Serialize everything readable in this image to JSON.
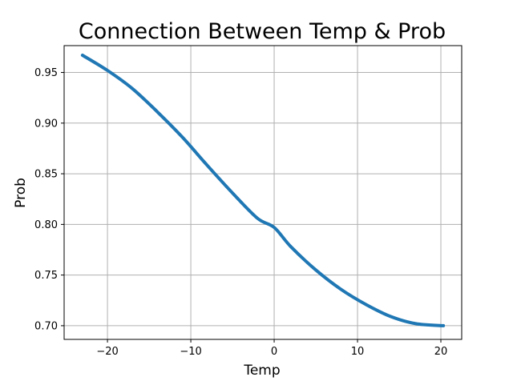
{
  "chart_data": {
    "type": "line",
    "title": "Connection Between Temp & Prob",
    "xlabel": "Temp",
    "ylabel": "Prob",
    "xlim": [
      -25.2,
      22.5
    ],
    "ylim": [
      0.6865,
      0.9765
    ],
    "grid": true,
    "x_ticks": [
      -20,
      -10,
      0,
      10,
      20
    ],
    "x_tick_labels": [
      "−20",
      "−10",
      "0",
      "10",
      "20"
    ],
    "y_ticks": [
      0.7,
      0.75,
      0.8,
      0.85,
      0.9,
      0.95
    ],
    "y_tick_labels": [
      "0.70",
      "0.75",
      "0.80",
      "0.85",
      "0.90",
      "0.95"
    ],
    "series": [
      {
        "color": "#1f77b4",
        "x": [
          -23,
          -20,
          -17,
          -14,
          -11,
          -8,
          -5,
          -2,
          0,
          2,
          5,
          8,
          11,
          14,
          17,
          20.3
        ],
        "y": [
          0.967,
          0.952,
          0.934,
          0.911,
          0.886,
          0.858,
          0.831,
          0.806,
          0.797,
          0.778,
          0.755,
          0.736,
          0.721,
          0.709,
          0.702,
          0.7
        ]
      }
    ]
  }
}
